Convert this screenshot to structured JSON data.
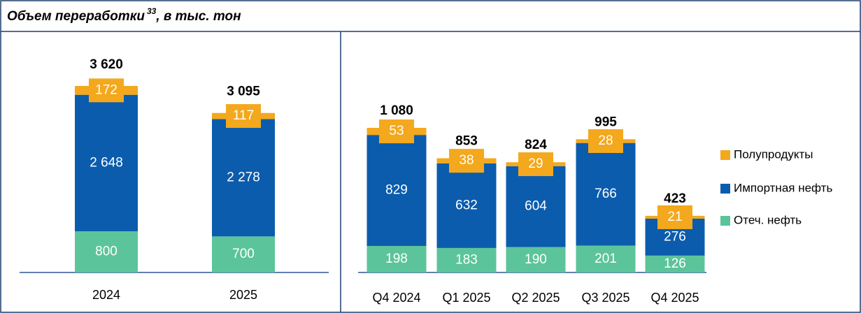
{
  "header": {
    "title": "Объем переработки",
    "footnote": "33",
    "title_suffix": ", в тыс. тон"
  },
  "chart_data": [
    {
      "type": "stacked_bar",
      "categories": [
        "2024",
        "2025"
      ],
      "series": [
        {
          "color": "#5cc49a",
          "values": [
            800,
            700
          ]
        },
        {
          "color": "#0b5cad",
          "values": [
            2648,
            2278
          ],
          "value_labels": [
            "2 648",
            "2 278"
          ]
        },
        {
          "color": "#f4a81d",
          "values": [
            172,
            117
          ]
        }
      ],
      "totals": [
        3620,
        3095
      ],
      "total_labels": [
        "3 620",
        "3 095"
      ]
    },
    {
      "type": "stacked_bar",
      "categories": [
        "Q4 2024",
        "Q1 2025",
        "Q2 2025",
        "Q3 2025",
        "Q4 2025"
      ],
      "series": [
        {
          "name": "Отеч. нефть",
          "color": "#5cc49a",
          "values": [
            198,
            183,
            190,
            201,
            126
          ]
        },
        {
          "name": "Импортная нефть",
          "color": "#0b5cad",
          "values": [
            829,
            632,
            604,
            766,
            276
          ]
        },
        {
          "name": "Полупродукты",
          "color": "#f4a81d",
          "values": [
            53,
            38,
            29,
            28,
            21
          ]
        }
      ],
      "totals": [
        1080,
        853,
        824,
        995,
        423
      ],
      "total_labels": [
        "1 080",
        "853",
        "824",
        "995",
        "423"
      ],
      "legend": "right"
    }
  ]
}
